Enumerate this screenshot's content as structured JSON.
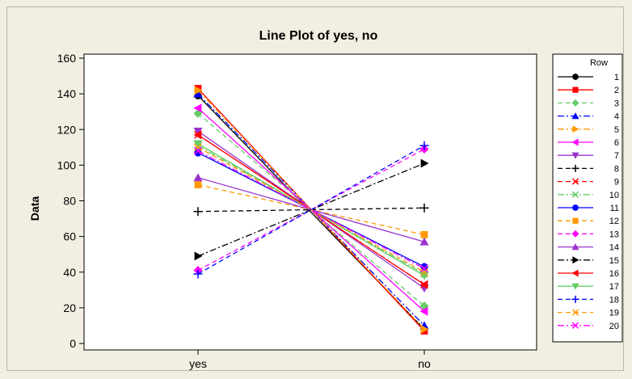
{
  "chart_data": {
    "type": "line",
    "title": "Line Plot of yes, no",
    "ylabel": "Data",
    "xlabel": "",
    "categories": [
      "yes",
      "no"
    ],
    "ylim": [
      -5,
      165
    ],
    "yticks": [
      0,
      20,
      40,
      60,
      80,
      100,
      120,
      140,
      160
    ],
    "legend_title": "Row",
    "legend_position": "right",
    "series": [
      {
        "name": "1",
        "values": [
          139,
          8
        ],
        "color": "#000000",
        "marker": "circle",
        "dash": "solid"
      },
      {
        "name": "2",
        "values": [
          143,
          7
        ],
        "color": "#ff0000",
        "marker": "square",
        "dash": "solid"
      },
      {
        "name": "3",
        "values": [
          129,
          21
        ],
        "color": "#66cc66",
        "marker": "diamond",
        "dash": "dash"
      },
      {
        "name": "4",
        "values": [
          140,
          10
        ],
        "color": "#0000ff",
        "marker": "triangle-up",
        "dash": "dashdot"
      },
      {
        "name": "5",
        "values": [
          142,
          8
        ],
        "color": "#ff9900",
        "marker": "triangle-right",
        "dash": "dashdot"
      },
      {
        "name": "6",
        "values": [
          132,
          18
        ],
        "color": "#ff00ff",
        "marker": "triangle-left",
        "dash": "solid"
      },
      {
        "name": "7",
        "values": [
          119,
          31
        ],
        "color": "#9933cc",
        "marker": "triangle-down",
        "dash": "solid"
      },
      {
        "name": "8",
        "values": [
          74,
          76
        ],
        "color": "#000000",
        "marker": "plus",
        "dash": "dash"
      },
      {
        "name": "9",
        "values": [
          117,
          33
        ],
        "color": "#ff0000",
        "marker": "x",
        "dash": "dash"
      },
      {
        "name": "10",
        "values": [
          111,
          39
        ],
        "color": "#66cc66",
        "marker": "x",
        "dash": "dashdot"
      },
      {
        "name": "11",
        "values": [
          107,
          43
        ],
        "color": "#0000ff",
        "marker": "circle",
        "dash": "solid"
      },
      {
        "name": "12",
        "values": [
          89,
          61
        ],
        "color": "#ff9900",
        "marker": "square",
        "dash": "dash"
      },
      {
        "name": "13",
        "values": [
          41,
          109
        ],
        "color": "#ff00ff",
        "marker": "diamond",
        "dash": "dash"
      },
      {
        "name": "14",
        "values": [
          93,
          57
        ],
        "color": "#9933cc",
        "marker": "triangle-up",
        "dash": "solid"
      },
      {
        "name": "15",
        "values": [
          49,
          101
        ],
        "color": "#000000",
        "marker": "triangle-right",
        "dash": "dashdot"
      },
      {
        "name": "16",
        "values": [
          117,
          33
        ],
        "color": "#ff0000",
        "marker": "triangle-left",
        "dash": "solid"
      },
      {
        "name": "17",
        "values": [
          112,
          38
        ],
        "color": "#66cc66",
        "marker": "triangle-down",
        "dash": "solid"
      },
      {
        "name": "18",
        "values": [
          39,
          111
        ],
        "color": "#0000ff",
        "marker": "plus",
        "dash": "dash"
      },
      {
        "name": "19",
        "values": [
          110,
          40
        ],
        "color": "#ff9900",
        "marker": "x",
        "dash": "dash"
      },
      {
        "name": "20",
        "values": [
          108,
          42
        ],
        "color": "#ff00ff",
        "marker": "x",
        "dash": "dashdot"
      }
    ]
  }
}
